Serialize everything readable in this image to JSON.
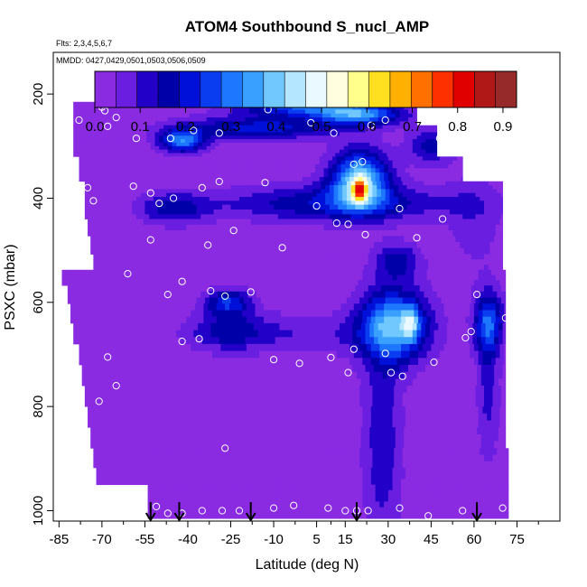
{
  "chart_data": {
    "type": "heatmap",
    "title": "ATOM4 Southbound S_nucl_AMP",
    "flights_note": "Flts: 2,3,4,5,6,7",
    "dates_note": "MMDD: 0427,0429,0501,0503,0506,0509",
    "xlabel": "Latitude (deg N)",
    "ylabel": "PSXC (mbar)",
    "xlim": [
      -87,
      90
    ],
    "ylim": [
      1020,
      120
    ],
    "x_ticks": [
      -85,
      -70,
      -55,
      -40,
      -25,
      -10,
      5,
      15,
      30,
      45,
      60,
      75
    ],
    "y_ticks": [
      200,
      400,
      600,
      800,
      1000
    ],
    "colorbar": {
      "ticks": [
        0.0,
        0.1,
        0.2,
        0.3,
        0.4,
        0.5,
        0.6,
        0.7,
        0.8,
        0.9
      ],
      "tick_labels": [
        "0.0",
        "0.1",
        "0.2",
        "0.3",
        "0.4",
        "0.5",
        "0.6",
        "0.7",
        "0.8",
        "0.9"
      ],
      "range": [
        0,
        0.93
      ],
      "colors": [
        "#8a2be2",
        "#6a1ee0",
        "#2200c8",
        "#0000a8",
        "#0010d8",
        "#0a3cf0",
        "#1e78ff",
        "#3aa0ff",
        "#70c8ff",
        "#b4e6ff",
        "#eaf8ff",
        "#ffffe0",
        "#ffff8c",
        "#ffe020",
        "#ffb000",
        "#ff7000",
        "#ff3000",
        "#e00000",
        "#b01818",
        "#962a2a"
      ]
    },
    "profile_arrows_lat": [
      -53,
      -43,
      -18,
      19,
      61
    ],
    "extent": [
      {
        "p": 205,
        "x0": -60,
        "x1": -48
      },
      {
        "p": 225,
        "x0": -80,
        "x1": 40
      },
      {
        "p": 250,
        "x0": -80,
        "x1": 40
      },
      {
        "p": 270,
        "x0": -80,
        "x1": 47
      },
      {
        "p": 290,
        "x0": -80,
        "x1": 47
      },
      {
        "p": 310,
        "x0": -80,
        "x1": 47
      },
      {
        "p": 330,
        "x0": -78,
        "x1": 56
      },
      {
        "p": 355,
        "x0": -78,
        "x1": 56
      },
      {
        "p": 380,
        "x0": -76,
        "x1": 70
      },
      {
        "p": 400,
        "x0": -76,
        "x1": 70
      },
      {
        "p": 425,
        "x0": -76,
        "x1": 70
      },
      {
        "p": 455,
        "x0": -75,
        "x1": 70
      },
      {
        "p": 490,
        "x0": -74,
        "x1": 70
      },
      {
        "p": 525,
        "x0": -73,
        "x1": 70
      },
      {
        "p": 550,
        "x0": -84,
        "x1": 71
      },
      {
        "p": 585,
        "x0": -82,
        "x1": 71
      },
      {
        "p": 620,
        "x0": -81,
        "x1": 71
      },
      {
        "p": 660,
        "x0": -80,
        "x1": 71
      },
      {
        "p": 700,
        "x0": -78,
        "x1": 71
      },
      {
        "p": 740,
        "x0": -77,
        "x1": 71
      },
      {
        "p": 780,
        "x0": -76,
        "x1": 71
      },
      {
        "p": 820,
        "x0": -75,
        "x1": 71
      },
      {
        "p": 860,
        "x0": -74,
        "x1": 71
      },
      {
        "p": 900,
        "x0": -73,
        "x1": 72
      },
      {
        "p": 935,
        "x0": -72,
        "x1": 72
      },
      {
        "p": 965,
        "x0": -54,
        "x1": 72
      },
      {
        "p": 1000,
        "x0": -54,
        "x1": 72
      }
    ],
    "features": [
      {
        "lat": -42,
        "p": 290,
        "rx": 8,
        "rp": 22,
        "amp": 0.3
      },
      {
        "lat": -15,
        "p": 265,
        "rx": 28,
        "rp": 22,
        "amp": 0.2
      },
      {
        "lat": 0,
        "p": 225,
        "rx": 22,
        "rp": 18,
        "amp": 0.25
      },
      {
        "lat": 20,
        "p": 240,
        "rx": 15,
        "rp": 20,
        "amp": 0.3
      },
      {
        "lat": 20,
        "p": 365,
        "rx": 10,
        "rp": 55,
        "amp": 0.4
      },
      {
        "lat": 20,
        "p": 385,
        "rx": 2.5,
        "rp": 22,
        "amp": 0.4
      },
      {
        "lat": 45,
        "p": 300,
        "rx": 8,
        "rp": 35,
        "amp": 0.15
      },
      {
        "lat": 12,
        "p": 410,
        "rx": 40,
        "rp": 35,
        "amp": 0.18
      },
      {
        "lat": -45,
        "p": 420,
        "rx": 12,
        "rp": 30,
        "amp": 0.15
      },
      {
        "lat": 32,
        "p": 645,
        "rx": 12,
        "rp": 70,
        "amp": 0.35
      },
      {
        "lat": 38,
        "p": 640,
        "rx": 3,
        "rp": 30,
        "amp": 0.2
      },
      {
        "lat": 33,
        "p": 520,
        "rx": 8,
        "rp": 35,
        "amp": 0.15
      },
      {
        "lat": -26,
        "p": 600,
        "rx": 8,
        "rp": 25,
        "amp": 0.22
      },
      {
        "lat": -26,
        "p": 655,
        "rx": 12,
        "rp": 35,
        "amp": 0.12
      },
      {
        "lat": 65,
        "p": 640,
        "rx": 5,
        "rp": 60,
        "amp": 0.25
      },
      {
        "lat": 65,
        "p": 770,
        "rx": 4,
        "rp": 140,
        "amp": 0.1
      },
      {
        "lat": 28,
        "p": 870,
        "rx": 7,
        "rp": 200,
        "amp": 0.12
      },
      {
        "lat": 60,
        "p": 440,
        "rx": 10,
        "rp": 100,
        "amp": 0.06
      },
      {
        "lat": -5,
        "p": 660,
        "rx": 35,
        "rp": 40,
        "amp": 0.08
      }
    ],
    "sample_points": [
      [
        -87,
        240
      ],
      [
        -78,
        250
      ],
      [
        -70,
        225
      ],
      [
        -68,
        220
      ],
      [
        -69,
        232
      ],
      [
        -68,
        262
      ],
      [
        -65,
        245
      ],
      [
        -62,
        212
      ],
      [
        -58,
        285
      ],
      [
        -54,
        205
      ],
      [
        -46,
        285
      ],
      [
        -38,
        270
      ],
      [
        -29,
        275
      ],
      [
        -12,
        230
      ],
      [
        3,
        255
      ],
      [
        11,
        275
      ],
      [
        19,
        220
      ],
      [
        24,
        260
      ],
      [
        29,
        250
      ],
      [
        48,
        285
      ],
      [
        -75,
        380
      ],
      [
        -73,
        405
      ],
      [
        -59,
        377
      ],
      [
        -53,
        390
      ],
      [
        -50,
        410
      ],
      [
        -45,
        400
      ],
      [
        -35,
        380
      ],
      [
        -29,
        368
      ],
      [
        -13,
        370
      ],
      [
        18,
        335
      ],
      [
        21,
        330
      ],
      [
        34,
        420
      ],
      [
        49,
        440
      ],
      [
        72,
        380
      ],
      [
        5,
        415
      ],
      [
        12,
        448
      ],
      [
        16,
        450
      ],
      [
        -53,
        480
      ],
      [
        -24,
        462
      ],
      [
        22,
        470
      ],
      [
        40,
        476
      ],
      [
        -33,
        490
      ],
      [
        -7,
        495
      ],
      [
        -88,
        538
      ],
      [
        -61,
        545
      ],
      [
        -42,
        560
      ],
      [
        -32,
        578
      ],
      [
        -27,
        588
      ],
      [
        -18,
        580
      ],
      [
        -47,
        585
      ],
      [
        61,
        585
      ],
      [
        -42,
        675
      ],
      [
        -36,
        670
      ],
      [
        -68,
        705
      ],
      [
        -65,
        760
      ],
      [
        -71,
        790
      ],
      [
        -10,
        710
      ],
      [
        10,
        706
      ],
      [
        -1,
        717
      ],
      [
        18,
        690
      ],
      [
        29,
        698
      ],
      [
        46,
        715
      ],
      [
        57,
        668
      ],
      [
        59,
        656
      ],
      [
        71,
        630
      ],
      [
        31,
        735
      ],
      [
        35,
        742
      ],
      [
        16,
        735
      ],
      [
        -27,
        880
      ],
      [
        -70,
        960
      ],
      [
        -59,
        960
      ],
      [
        -58,
        960
      ],
      [
        -59,
        985
      ],
      [
        -51,
        992
      ],
      [
        -47,
        1005
      ],
      [
        -42,
        1005
      ],
      [
        -35,
        1000
      ],
      [
        -28,
        1000
      ],
      [
        -22,
        1000
      ],
      [
        -10,
        995
      ],
      [
        -3,
        990
      ],
      [
        9,
        995
      ],
      [
        15,
        1000
      ],
      [
        19,
        1000
      ],
      [
        23,
        1000
      ],
      [
        34,
        995
      ],
      [
        44,
        1010
      ],
      [
        56,
        1000
      ],
      [
        70,
        995
      ]
    ]
  }
}
